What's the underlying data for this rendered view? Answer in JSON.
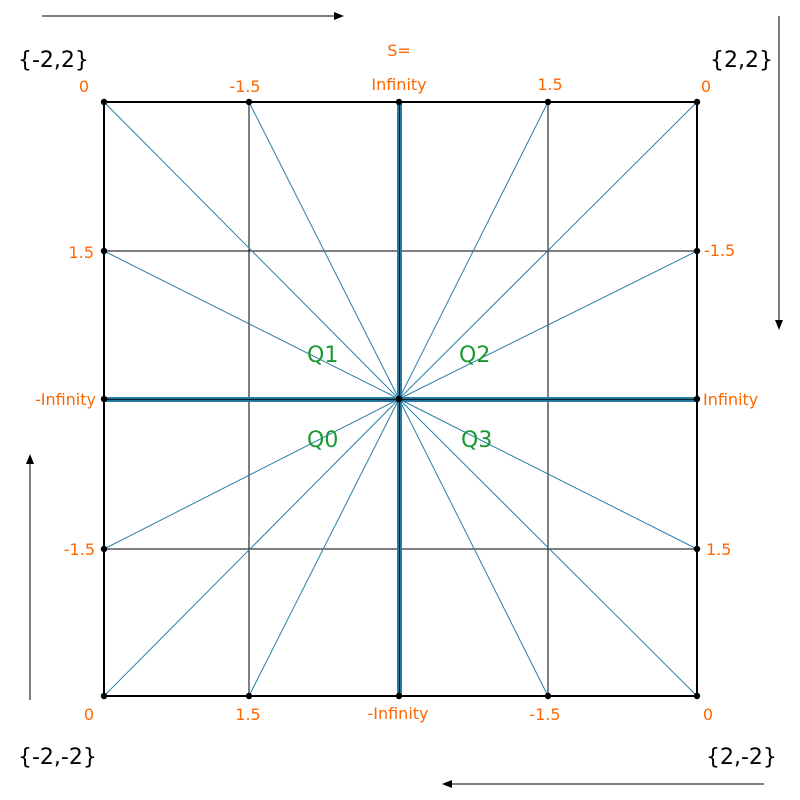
{
  "corners": {
    "top_left": "{-2,2}",
    "top_right": "{2,2}",
    "bottom_left": "{-2,-2}",
    "bottom_right": "{2,-2}"
  },
  "s_label": "S=",
  "top_values": [
    "0",
    "-1.5",
    "Infinity",
    "1.5",
    "0"
  ],
  "right_values": [
    "-1.5",
    "Infinity",
    "1.5"
  ],
  "bottom_values": [
    "0",
    "1.5",
    "-Infinity",
    "-1.5",
    "0"
  ],
  "left_values": [
    "1.5",
    "-Infinity",
    "-1.5"
  ],
  "quadrants": [
    "Q0",
    "Q1",
    "Q2",
    "Q3"
  ],
  "colors": {
    "label": "#ff6600",
    "quadrant": "#1a9933",
    "ray": "#2a7fa8",
    "frame": "#000000"
  }
}
